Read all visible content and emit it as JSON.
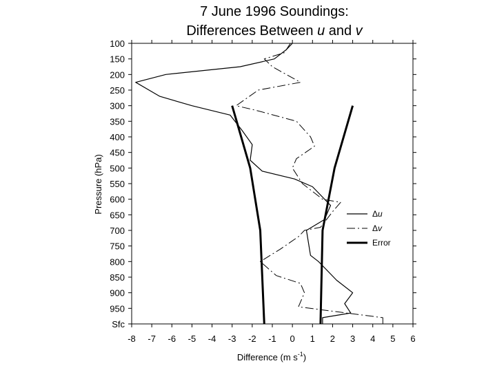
{
  "chart_data": {
    "type": "line",
    "title_line1": "7 June 1996 Soundings:",
    "title_line2_prefix": "Differences Between ",
    "title_line2_u": "u",
    "title_line2_mid": " and ",
    "title_line2_v": "v",
    "xlabel_text": "Difference (m s",
    "xlabel_sup": "-1",
    "xlabel_close": ")",
    "ylabel": "Pressure (hPa)",
    "xlim": [
      -8,
      6
    ],
    "ylim": [
      100,
      1000
    ],
    "y_inverted": true,
    "x_ticks": [
      -8,
      -7,
      -6,
      -5,
      -4,
      -3,
      -2,
      -1,
      0,
      1,
      2,
      3,
      4,
      5,
      6
    ],
    "y_ticks": [
      {
        "value": 100,
        "label": "100"
      },
      {
        "value": 150,
        "label": "150"
      },
      {
        "value": 200,
        "label": "200"
      },
      {
        "value": 250,
        "label": "250"
      },
      {
        "value": 300,
        "label": "300"
      },
      {
        "value": 350,
        "label": "350"
      },
      {
        "value": 400,
        "label": "400"
      },
      {
        "value": 450,
        "label": "450"
      },
      {
        "value": 500,
        "label": "500"
      },
      {
        "value": 550,
        "label": "550"
      },
      {
        "value": 600,
        "label": "600"
      },
      {
        "value": 650,
        "label": "650"
      },
      {
        "value": 700,
        "label": "700"
      },
      {
        "value": 750,
        "label": "750"
      },
      {
        "value": 800,
        "label": "800"
      },
      {
        "value": 850,
        "label": "850"
      },
      {
        "value": 900,
        "label": "900"
      },
      {
        "value": 950,
        "label": "950"
      },
      {
        "value": 1000,
        "label": "Sfc"
      }
    ],
    "legend_placement": "right",
    "grid": false,
    "series": [
      {
        "name": "u",
        "legend_prefix": "Δ",
        "style": "solid",
        "color": "#000000",
        "points": [
          {
            "x": 0.0,
            "p": 100
          },
          {
            "x": -0.3,
            "p": 120
          },
          {
            "x": -0.9,
            "p": 150
          },
          {
            "x": -2.6,
            "p": 175
          },
          {
            "x": -6.3,
            "p": 200
          },
          {
            "x": -7.8,
            "p": 225
          },
          {
            "x": -6.6,
            "p": 270
          },
          {
            "x": -5.0,
            "p": 300
          },
          {
            "x": -3.1,
            "p": 330
          },
          {
            "x": -2.5,
            "p": 380
          },
          {
            "x": -2.0,
            "p": 425
          },
          {
            "x": -2.1,
            "p": 475
          },
          {
            "x": -1.5,
            "p": 510
          },
          {
            "x": 0.1,
            "p": 535
          },
          {
            "x": 1.0,
            "p": 560
          },
          {
            "x": 1.9,
            "p": 620
          },
          {
            "x": 1.6,
            "p": 665
          },
          {
            "x": 0.7,
            "p": 700
          },
          {
            "x": 0.9,
            "p": 780
          },
          {
            "x": 1.3,
            "p": 800
          },
          {
            "x": 2.2,
            "p": 860
          },
          {
            "x": 3.0,
            "p": 900
          },
          {
            "x": 2.6,
            "p": 935
          },
          {
            "x": 2.9,
            "p": 965
          },
          {
            "x": 1.5,
            "p": 980
          },
          {
            "x": 1.5,
            "p": 1000
          }
        ]
      },
      {
        "name": "v",
        "legend_prefix": "Δ",
        "style": "dashed",
        "color": "#000000",
        "points": [
          {
            "x": -0.1,
            "p": 100
          },
          {
            "x": -0.4,
            "p": 130
          },
          {
            "x": -1.4,
            "p": 150
          },
          {
            "x": -1.0,
            "p": 175
          },
          {
            "x": 0.4,
            "p": 225
          },
          {
            "x": -1.7,
            "p": 250
          },
          {
            "x": -2.8,
            "p": 300
          },
          {
            "x": -1.8,
            "p": 315
          },
          {
            "x": 0.2,
            "p": 350
          },
          {
            "x": 0.9,
            "p": 400
          },
          {
            "x": 1.1,
            "p": 430
          },
          {
            "x": 0.2,
            "p": 470
          },
          {
            "x": 0.0,
            "p": 500
          },
          {
            "x": 0.5,
            "p": 550
          },
          {
            "x": 1.5,
            "p": 600
          },
          {
            "x": 2.4,
            "p": 610
          },
          {
            "x": 2.0,
            "p": 640
          },
          {
            "x": 1.4,
            "p": 690
          },
          {
            "x": 0.6,
            "p": 700
          },
          {
            "x": 0.3,
            "p": 720
          },
          {
            "x": -0.6,
            "p": 760
          },
          {
            "x": -1.6,
            "p": 800
          },
          {
            "x": -0.8,
            "p": 845
          },
          {
            "x": 0.4,
            "p": 870
          },
          {
            "x": 0.6,
            "p": 900
          },
          {
            "x": 0.3,
            "p": 945
          },
          {
            "x": 4.5,
            "p": 980
          },
          {
            "x": 4.5,
            "p": 1000
          }
        ]
      },
      {
        "name": "Error",
        "legend_prefix": "",
        "style": "thick",
        "color": "#000000",
        "branches": [
          [
            {
              "x": -3.0,
              "p": 300
            },
            {
              "x": -2.1,
              "p": 500
            },
            {
              "x": -1.6,
              "p": 700
            },
            {
              "x": -1.4,
              "p": 1000
            }
          ],
          [
            {
              "x": 3.0,
              "p": 300
            },
            {
              "x": 2.1,
              "p": 500
            },
            {
              "x": 1.5,
              "p": 700
            },
            {
              "x": 1.4,
              "p": 1000
            }
          ]
        ]
      }
    ]
  }
}
